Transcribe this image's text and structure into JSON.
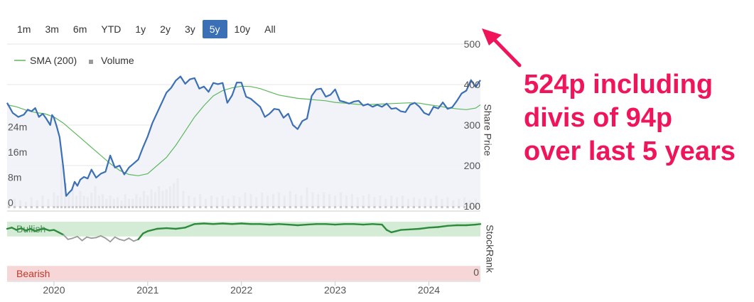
{
  "range_selector": {
    "buttons": [
      "1m",
      "3m",
      "6m",
      "YTD",
      "1y",
      "2y",
      "3y",
      "5y",
      "10y",
      "All"
    ],
    "active": "5y",
    "active_color": "#3b6fb6"
  },
  "legend": {
    "sma_label": "SMA (200)",
    "volume_label": "Volume"
  },
  "annotation": {
    "lines": [
      "524p including",
      "divis of 94p",
      "over last 5 years"
    ],
    "color": "#f0155a",
    "arrow_icon": "arrow-pointing-up-left"
  },
  "chart_data": [
    {
      "type": "line",
      "title": "",
      "ylabel": "Share Price",
      "ylim": [
        100,
        500
      ],
      "y_ticks": [
        "500",
        "400",
        "300",
        "200",
        "100"
      ],
      "x_ticks": [
        "2020",
        "2021",
        "2022",
        "2023",
        "2024"
      ],
      "xlim": [
        2019.5,
        2024.55
      ],
      "grid": true,
      "colors": {
        "price": "#3b6fb6",
        "sma": "#5cb85c",
        "fill": "#eef1f8"
      },
      "series": [
        {
          "name": "",
          "x": [
            2019.5,
            2019.56,
            2019.62,
            2019.68,
            2019.72,
            2019.76,
            2019.8,
            2019.84,
            2019.88,
            2019.92,
            2019.96,
            2019.98,
            2020.0,
            2020.03,
            2020.06,
            2020.1,
            2020.13,
            2020.16,
            2020.19,
            2020.22,
            2020.25,
            2020.28,
            2020.32,
            2020.36,
            2020.4,
            2020.45,
            2020.5,
            2020.55,
            2020.6,
            2020.65,
            2020.7,
            2020.75,
            2020.8,
            2020.85,
            2020.9,
            2020.95,
            2021.0,
            2021.05,
            2021.1,
            2021.15,
            2021.2,
            2021.25,
            2021.3,
            2021.35,
            2021.4,
            2021.45,
            2021.5,
            2021.55,
            2021.6,
            2021.65,
            2021.7,
            2021.75,
            2021.8,
            2021.85,
            2021.9,
            2021.95,
            2022.0,
            2022.05,
            2022.1,
            2022.15,
            2022.2,
            2022.25,
            2022.3,
            2022.35,
            2022.4,
            2022.45,
            2022.5,
            2022.55,
            2022.6,
            2022.65,
            2022.7,
            2022.75,
            2022.8,
            2022.85,
            2022.9,
            2022.95,
            2023.0,
            2023.05,
            2023.1,
            2023.15,
            2023.2,
            2023.25,
            2023.3,
            2023.35,
            2023.4,
            2023.45,
            2023.5,
            2023.55,
            2023.6,
            2023.65,
            2023.7,
            2023.75,
            2023.8,
            2023.85,
            2023.9,
            2023.95,
            2024.0,
            2024.05,
            2024.1,
            2024.15,
            2024.2,
            2024.25,
            2024.3,
            2024.35,
            2024.4,
            2024.45,
            2024.5,
            2024.55
          ],
          "values": [
            355,
            330,
            320,
            326,
            338,
            334,
            342,
            320,
            328,
            315,
            300,
            325,
            318,
            296,
            270,
            195,
            125,
            133,
            140,
            160,
            150,
            165,
            172,
            168,
            190,
            170,
            180,
            185,
            225,
            195,
            200,
            178,
            195,
            205,
            215,
            245,
            272,
            305,
            330,
            355,
            380,
            392,
            410,
            420,
            402,
            413,
            416,
            390,
            395,
            382,
            404,
            401,
            404,
            355,
            373,
            405,
            405,
            370,
            365,
            355,
            345,
            320,
            328,
            340,
            338,
            318,
            328,
            300,
            290,
            310,
            316,
            372,
            388,
            390,
            370,
            375,
            388,
            360,
            357,
            353,
            358,
            360,
            348,
            352,
            345,
            350,
            345,
            353,
            340,
            342,
            334,
            332,
            350,
            355,
            345,
            330,
            325,
            345,
            341,
            356,
            340,
            344,
            360,
            378,
            385,
            411,
            394,
            411
          ]
        },
        {
          "name": "SMA (200)",
          "x": [
            2019.5,
            2019.6,
            2019.7,
            2019.8,
            2019.9,
            2020.0,
            2020.1,
            2020.2,
            2020.3,
            2020.4,
            2020.5,
            2020.6,
            2020.7,
            2020.8,
            2020.9,
            2021.0,
            2021.1,
            2021.2,
            2021.3,
            2021.4,
            2021.5,
            2021.6,
            2021.7,
            2021.8,
            2021.9,
            2022.0,
            2022.1,
            2022.2,
            2022.3,
            2022.4,
            2022.5,
            2022.6,
            2022.7,
            2022.8,
            2022.9,
            2023.0,
            2023.1,
            2023.2,
            2023.3,
            2023.4,
            2023.5,
            2023.6,
            2023.7,
            2023.8,
            2023.9,
            2024.0,
            2024.1,
            2024.2,
            2024.3,
            2024.4,
            2024.5,
            2024.55
          ],
          "values": [
            350,
            345,
            337,
            331,
            328,
            320,
            305,
            285,
            265,
            245,
            225,
            205,
            188,
            178,
            175,
            180,
            200,
            220,
            250,
            285,
            320,
            348,
            372,
            385,
            392,
            396,
            395,
            390,
            382,
            374,
            370,
            366,
            364,
            362,
            360,
            356,
            354,
            352,
            350,
            351,
            352,
            353,
            354,
            355,
            354,
            350,
            347,
            343,
            340,
            338,
            342,
            350
          ]
        }
      ]
    },
    {
      "type": "bar",
      "title": "",
      "ylabel": "",
      "ylim": [
        0,
        30
      ],
      "y_ticks": [
        "24m",
        "16m",
        "8m",
        "0"
      ],
      "series": [
        {
          "name": "Volume",
          "color": "#c8c8c8",
          "x": [
            2019.52,
            2019.58,
            2019.64,
            2019.7,
            2019.76,
            2019.82,
            2019.88,
            2019.94,
            2020.0,
            2020.04,
            2020.08,
            2020.12,
            2020.16,
            2020.2,
            2020.24,
            2020.28,
            2020.32,
            2020.36,
            2020.4,
            2020.44,
            2020.48,
            2020.52,
            2020.56,
            2020.6,
            2020.64,
            2020.68,
            2020.72,
            2020.76,
            2020.8,
            2020.84,
            2020.88,
            2020.92,
            2020.96,
            2021.0,
            2021.04,
            2021.08,
            2021.12,
            2021.16,
            2021.2,
            2021.24,
            2021.28,
            2021.32,
            2021.38,
            2021.44,
            2021.5,
            2021.56,
            2021.62,
            2021.68,
            2021.74,
            2021.8,
            2021.86,
            2021.92,
            2021.98,
            2022.04,
            2022.1,
            2022.16,
            2022.22,
            2022.28,
            2022.34,
            2022.4,
            2022.46,
            2022.52,
            2022.58,
            2022.64,
            2022.7,
            2022.76,
            2022.82,
            2022.88,
            2022.94,
            2023.0,
            2023.06,
            2023.12,
            2023.18,
            2023.24,
            2023.3,
            2023.36,
            2023.42,
            2023.48,
            2023.54,
            2023.6,
            2023.66,
            2023.72,
            2023.78,
            2023.84,
            2023.9,
            2023.96,
            2024.02,
            2024.08,
            2024.14,
            2024.2,
            2024.26,
            2024.32,
            2024.38,
            2024.44,
            2024.5
          ],
          "values": [
            2.0,
            3.0,
            2.5,
            2.0,
            3.5,
            2.5,
            4.0,
            3.0,
            5.0,
            4.0,
            14.0,
            8.0,
            5.0,
            6.5,
            4.0,
            5.5,
            4.0,
            3.5,
            5.0,
            7.0,
            4.0,
            4.5,
            3.0,
            4.0,
            3.0,
            3.5,
            2.5,
            4.5,
            3.0,
            3.0,
            4.5,
            3.5,
            5.5,
            4.0,
            6.0,
            5.0,
            7.0,
            5.5,
            6.0,
            7.0,
            8.0,
            9.5,
            5.5,
            4.0,
            3.5,
            4.5,
            3.0,
            4.0,
            3.5,
            4.0,
            3.0,
            4.0,
            3.5,
            5.0,
            4.5,
            3.5,
            5.0,
            4.0,
            4.5,
            5.0,
            4.0,
            5.5,
            4.5,
            4.0,
            6.5,
            5.0,
            4.5,
            5.0,
            4.5,
            4.0,
            5.0,
            4.0,
            4.5,
            3.5,
            4.0,
            4.5,
            3.5,
            4.0,
            3.0,
            4.0,
            3.5,
            4.0,
            3.0,
            3.5,
            3.0,
            3.5,
            3.0,
            4.0,
            3.0,
            3.5,
            2.5,
            3.0,
            3.5,
            2.5,
            3.0
          ]
        }
      ]
    },
    {
      "type": "line",
      "title": "",
      "ylabel": "StockRank",
      "ylim": [
        0,
        100
      ],
      "y_ticks": [
        "0"
      ],
      "zones": [
        {
          "label": "Bullish",
          "color": "#d4ecd5"
        },
        {
          "label": "Bearish",
          "color": "#f6d6d6"
        }
      ],
      "series": [
        {
          "name": "",
          "x": [
            2019.5,
            2019.55,
            2019.6,
            2019.65,
            2019.7,
            2019.75,
            2019.8,
            2019.85,
            2019.9,
            2019.95,
            2020.0,
            2020.05,
            2020.1,
            2020.15,
            2020.2,
            2020.25,
            2020.3,
            2020.35,
            2020.4,
            2020.45,
            2020.5,
            2020.55,
            2020.6,
            2020.65,
            2020.7,
            2020.75,
            2020.8,
            2020.85,
            2020.9,
            2020.95,
            2021.0,
            2021.1,
            2021.2,
            2021.3,
            2021.4,
            2021.5,
            2021.6,
            2021.7,
            2021.8,
            2021.9,
            2022.0,
            2022.1,
            2022.2,
            2022.3,
            2022.4,
            2022.5,
            2022.6,
            2022.7,
            2022.8,
            2022.9,
            2023.0,
            2023.1,
            2023.2,
            2023.3,
            2023.4,
            2023.5,
            2023.55,
            2023.6,
            2023.65,
            2023.7,
            2023.8,
            2023.9,
            2024.0,
            2024.1,
            2024.2,
            2024.3,
            2024.4,
            2024.5,
            2024.55
          ],
          "values": [
            88,
            90,
            86,
            89,
            85,
            88,
            84,
            87,
            88,
            85,
            86,
            82,
            78,
            70,
            72,
            75,
            68,
            74,
            72,
            73,
            76,
            72,
            66,
            74,
            70,
            68,
            72,
            67,
            70,
            80,
            84,
            88,
            89,
            88,
            90,
            96,
            97,
            96,
            97,
            96,
            97,
            96,
            96,
            95,
            96,
            95,
            94,
            95,
            96,
            96,
            95,
            96,
            96,
            95,
            96,
            95,
            86,
            82,
            84,
            86,
            87,
            88,
            90,
            91,
            93,
            94,
            94,
            95,
            96
          ]
        }
      ]
    }
  ]
}
